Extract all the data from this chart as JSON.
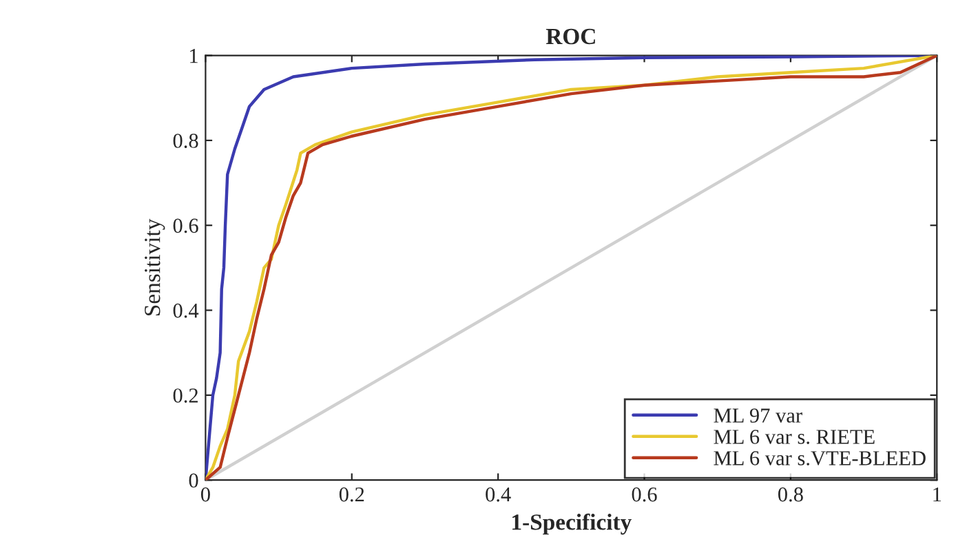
{
  "chart_data": {
    "type": "line",
    "title": "ROC",
    "xlabel": "1-Specificity",
    "ylabel": "Sensitivity",
    "xlim": [
      0,
      1
    ],
    "ylim": [
      0,
      1
    ],
    "xticks": [
      0,
      0.2,
      0.4,
      0.6,
      0.8,
      1
    ],
    "yticks": [
      0,
      0.2,
      0.4,
      0.6,
      0.8,
      1
    ],
    "grid": false,
    "legend": "bottom right",
    "line_style": "solid",
    "marker": "none",
    "series": [
      {
        "name": "ML 97 var",
        "color": "#3b3bb0",
        "x": [
          0,
          0.005,
          0.01,
          0.015,
          0.02,
          0.022,
          0.025,
          0.027,
          0.03,
          0.04,
          0.05,
          0.06,
          0.08,
          0.12,
          0.2,
          0.3,
          0.45,
          0.6,
          0.8,
          1
        ],
        "values": [
          0,
          0.1,
          0.2,
          0.24,
          0.3,
          0.45,
          0.5,
          0.6,
          0.72,
          0.78,
          0.83,
          0.88,
          0.92,
          0.95,
          0.97,
          0.98,
          0.99,
          0.995,
          0.997,
          1
        ]
      },
      {
        "name": "ML 6 var s. RIETE",
        "color": "#e8c830",
        "x": [
          0,
          0.01,
          0.02,
          0.03,
          0.04,
          0.045,
          0.06,
          0.07,
          0.08,
          0.09,
          0.1,
          0.11,
          0.125,
          0.13,
          0.15,
          0.2,
          0.3,
          0.4,
          0.5,
          0.6,
          0.7,
          0.8,
          0.9,
          1
        ],
        "values": [
          0,
          0.03,
          0.08,
          0.12,
          0.2,
          0.28,
          0.35,
          0.42,
          0.5,
          0.52,
          0.6,
          0.65,
          0.73,
          0.77,
          0.79,
          0.82,
          0.86,
          0.89,
          0.92,
          0.93,
          0.95,
          0.96,
          0.97,
          1
        ]
      },
      {
        "name": "ML 6 var s.VTE-BLEED",
        "color": "#b83a1e",
        "x": [
          0,
          0.02,
          0.03,
          0.045,
          0.06,
          0.07,
          0.08,
          0.09,
          0.1,
          0.11,
          0.12,
          0.13,
          0.14,
          0.16,
          0.2,
          0.3,
          0.4,
          0.5,
          0.6,
          0.7,
          0.8,
          0.9,
          0.95,
          1
        ],
        "values": [
          0,
          0.03,
          0.1,
          0.2,
          0.3,
          0.38,
          0.45,
          0.53,
          0.56,
          0.62,
          0.67,
          0.7,
          0.77,
          0.79,
          0.81,
          0.85,
          0.88,
          0.91,
          0.93,
          0.94,
          0.95,
          0.95,
          0.96,
          1
        ]
      },
      {
        "color": "#d0d0d0",
        "x": [
          0,
          1
        ],
        "values": [
          0,
          1
        ]
      }
    ]
  }
}
